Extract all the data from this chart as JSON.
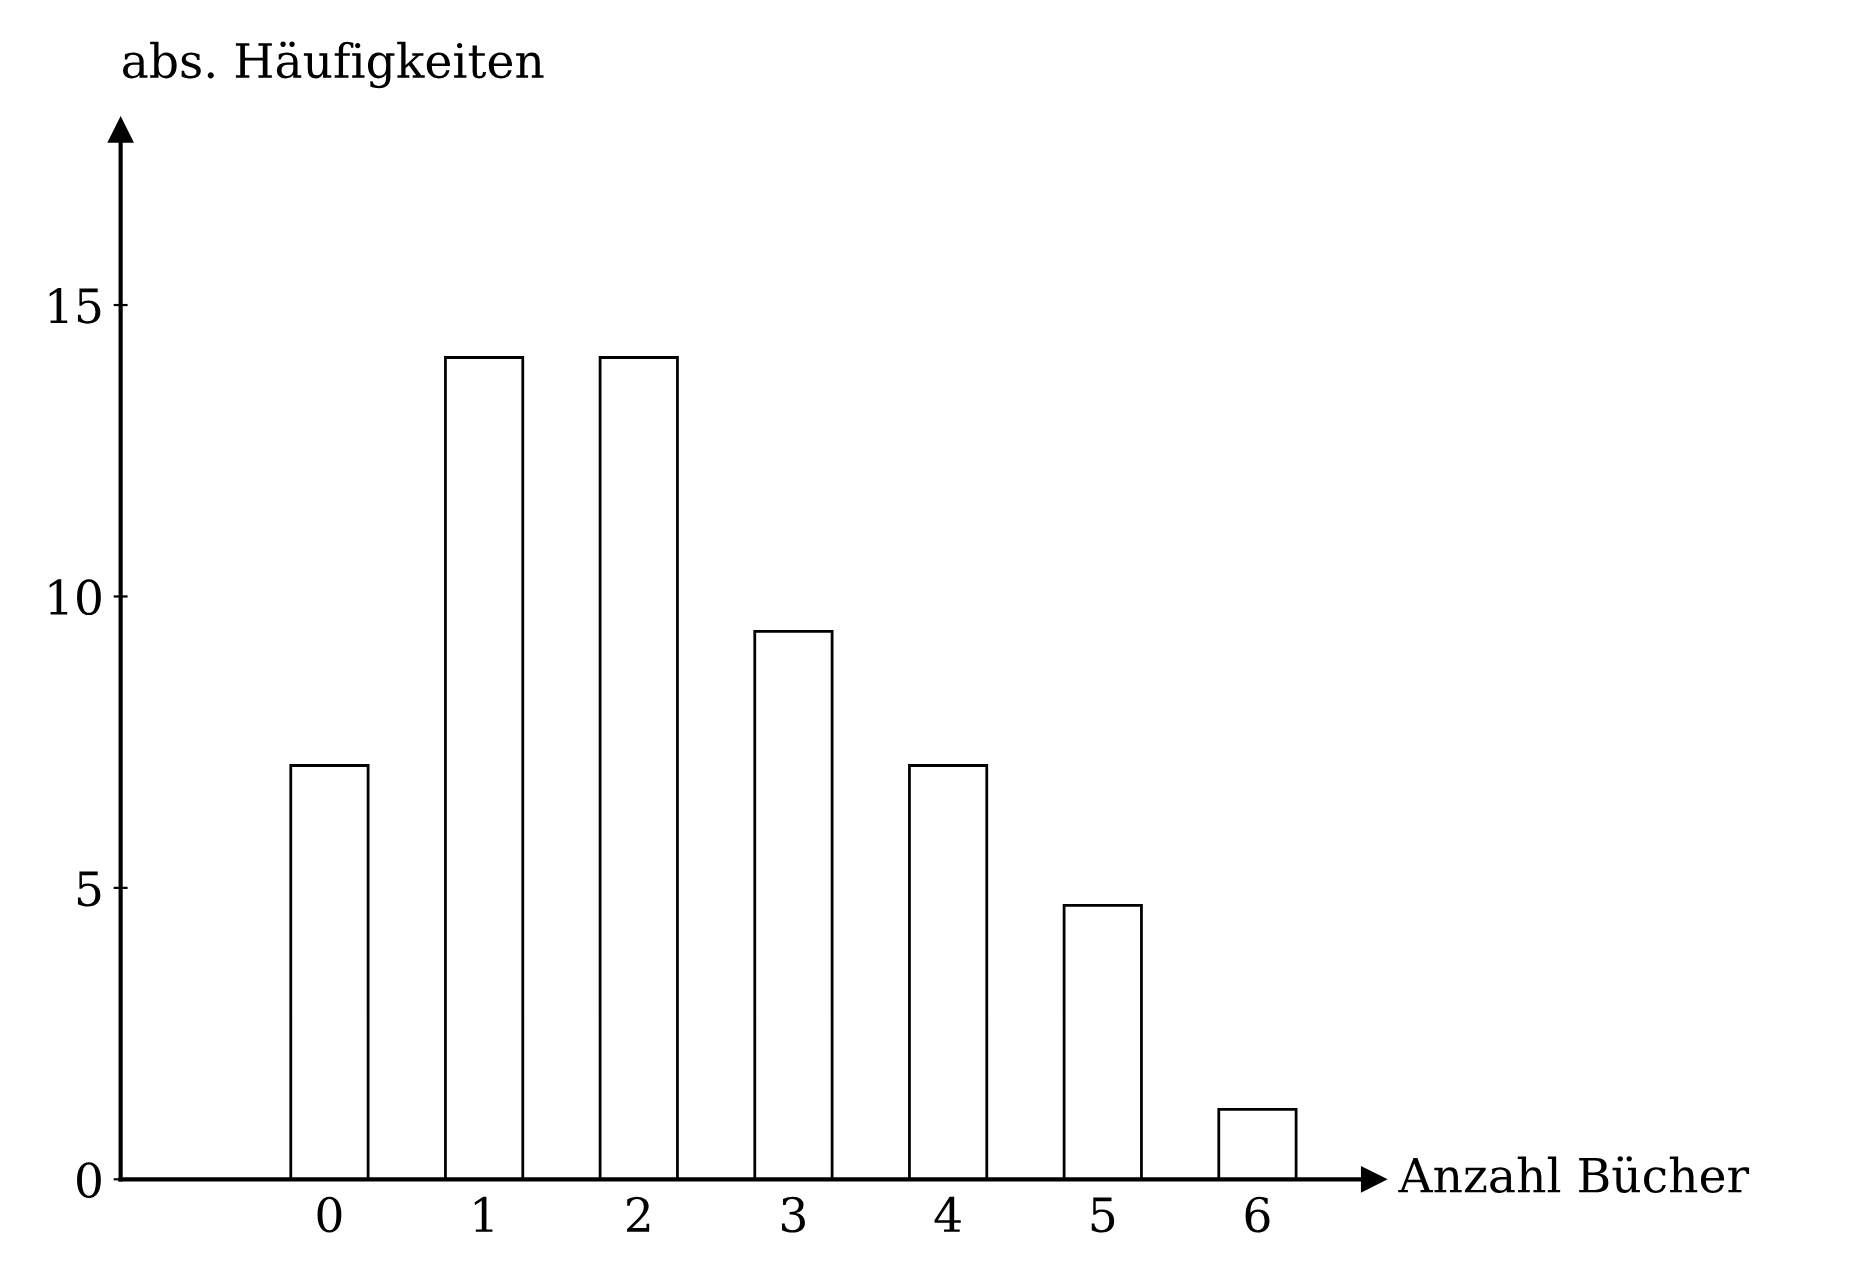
{
  "chart_data": {
    "type": "bar",
    "xlabel": "Anzahl Bücher",
    "ylabel": "abs. Häufigkeiten",
    "categories": [
      "0",
      "1",
      "2",
      "3",
      "4",
      "5",
      "6"
    ],
    "values": [
      7.1,
      14.1,
      14.1,
      9.4,
      7.1,
      4.7,
      1.2
    ],
    "color": "#ffffff",
    "ylim": [
      0,
      18
    ],
    "yticks": [
      0,
      5,
      10,
      15
    ],
    "grid": false
  }
}
